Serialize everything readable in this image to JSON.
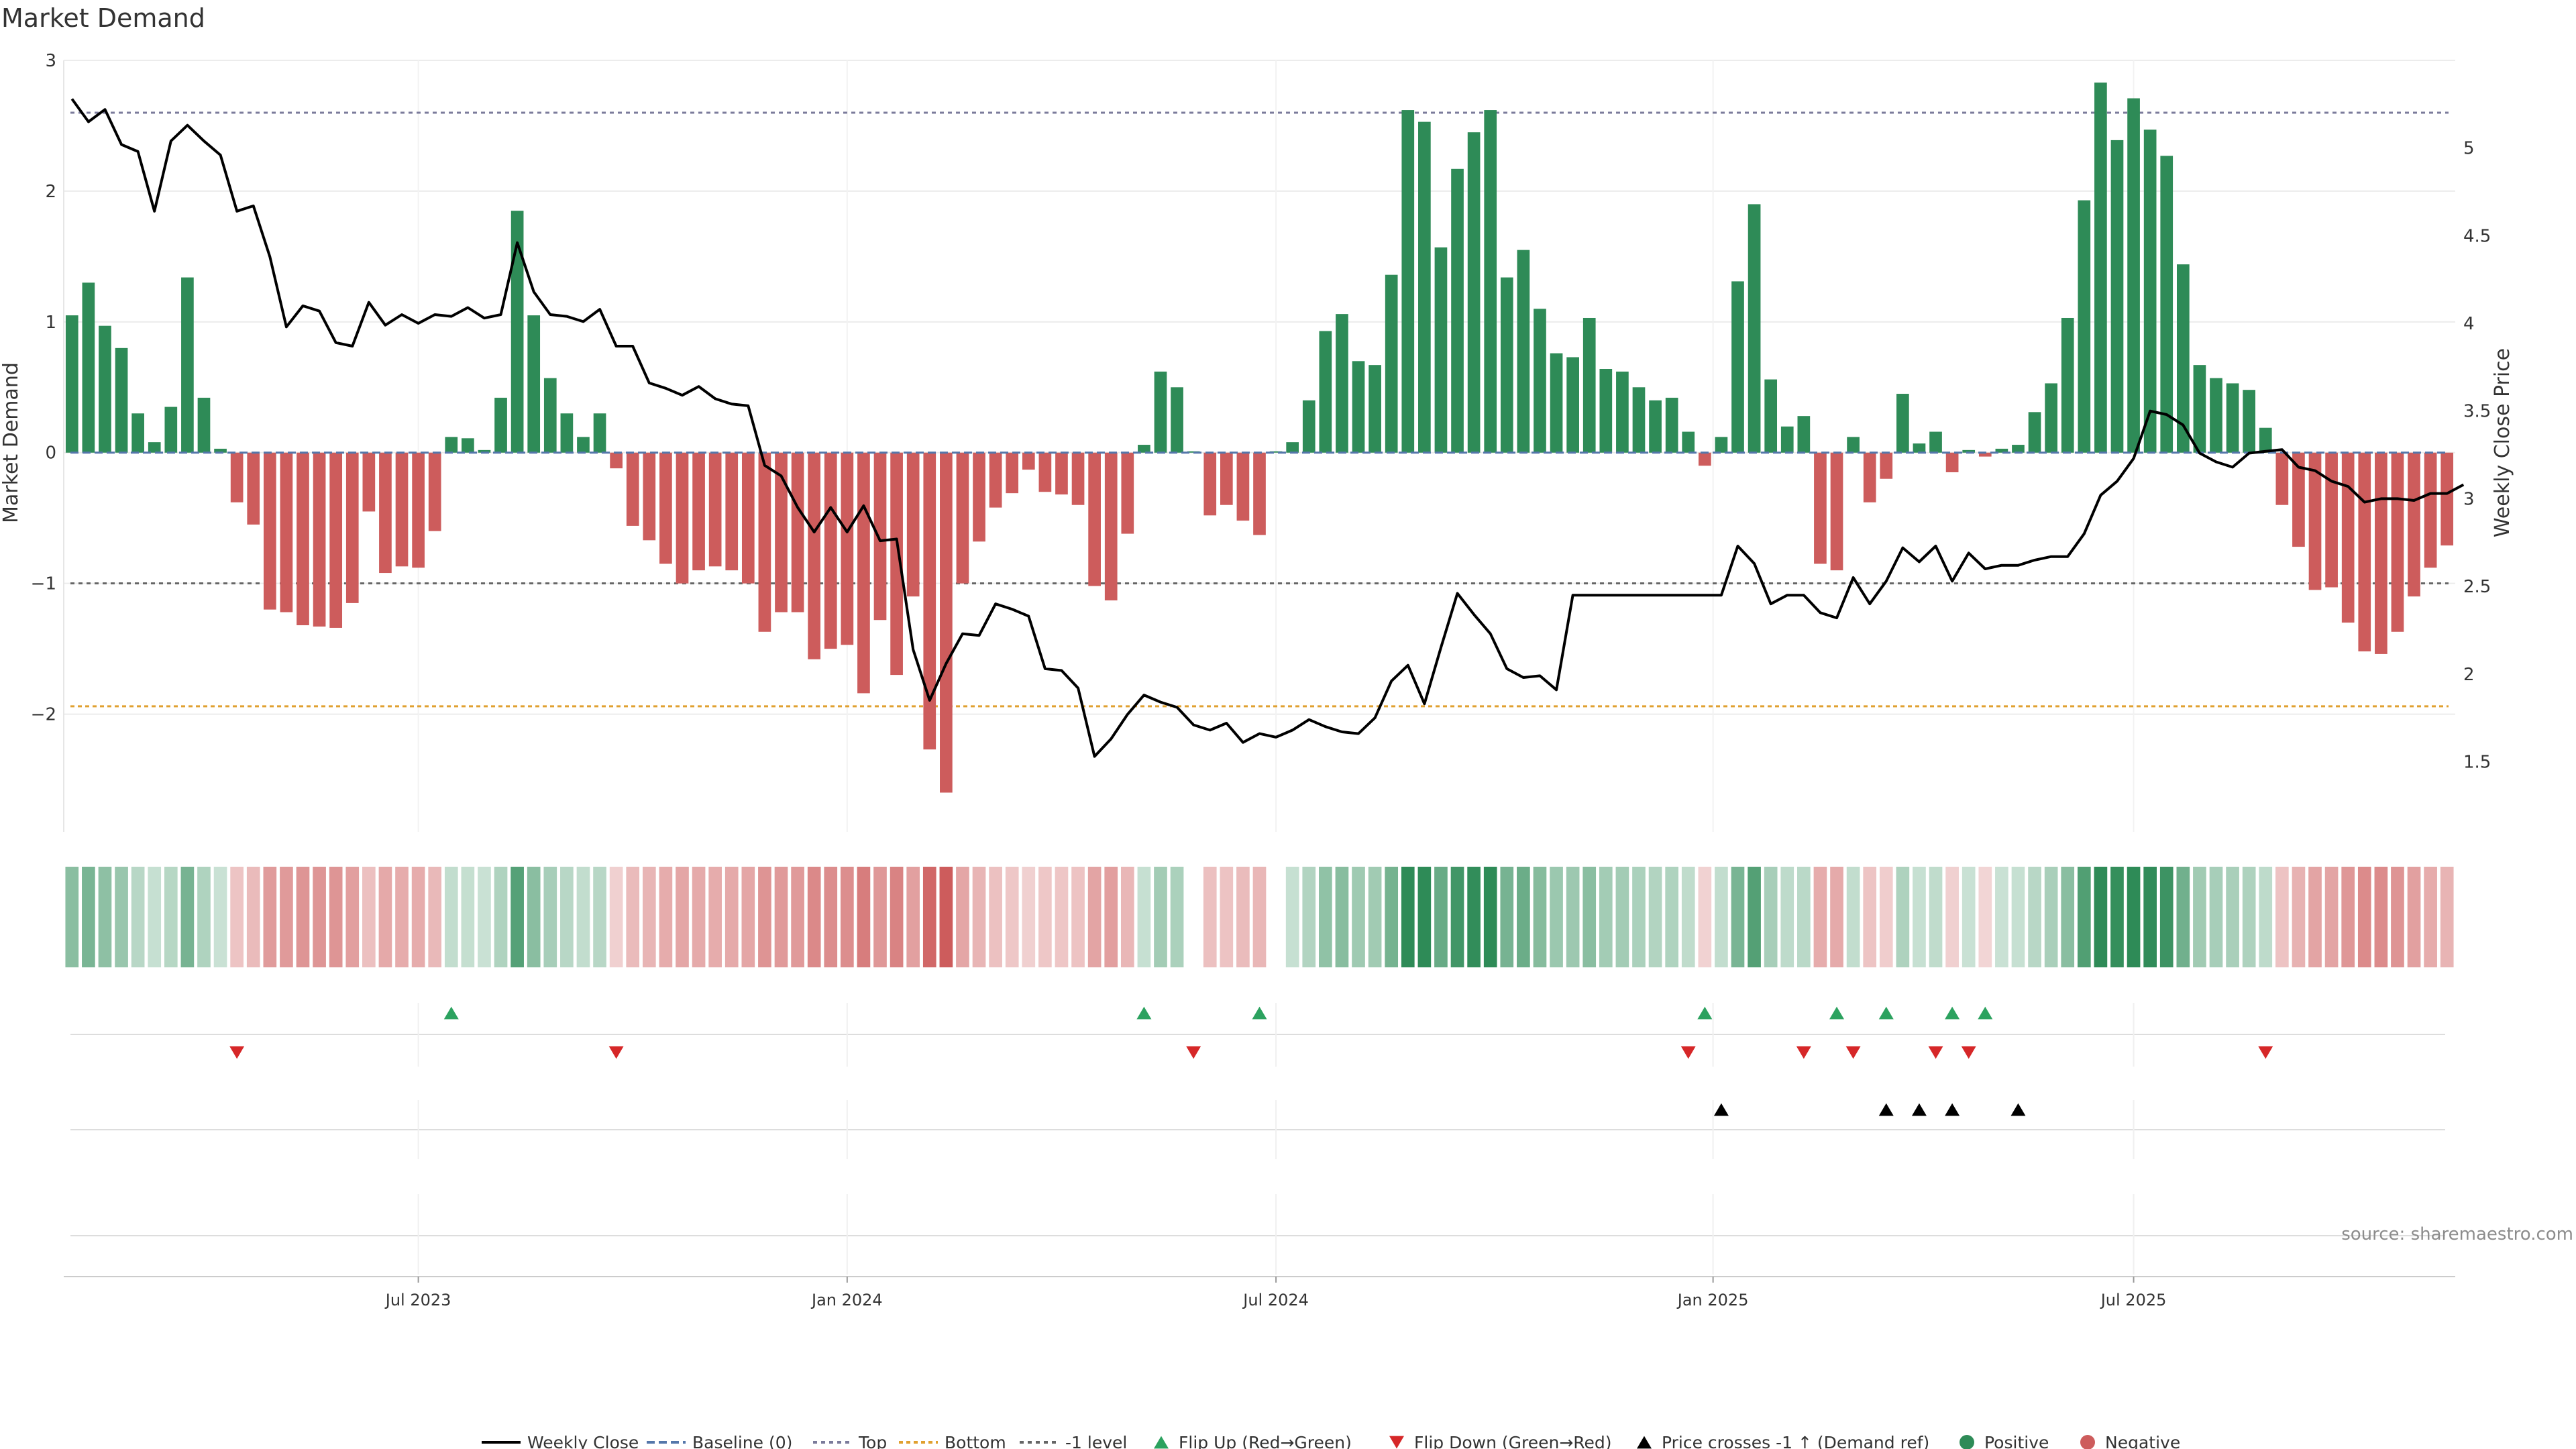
{
  "chart_data": {
    "type": "bar",
    "title": "Market Demand",
    "ylabel": "Market Demand",
    "y2label": "Weekly Close Price",
    "ylim": [
      -2.9,
      3.0
    ],
    "y2lim": [
      1.1,
      5.5
    ],
    "yticks": [
      "3",
      "2",
      "1",
      "0",
      "−1",
      "−2"
    ],
    "ytick_values": [
      3,
      2,
      1,
      0,
      -1,
      -2
    ],
    "y2ticks": [
      "5",
      "4.5",
      "4",
      "3.5",
      "3",
      "2.5",
      "2",
      "1.5"
    ],
    "y2tick_values": [
      5,
      4.5,
      4,
      3.5,
      3,
      2.5,
      2,
      1.5
    ],
    "xticks": [
      "Jul 2023",
      "Jan 2024",
      "Jul 2024",
      "Jan 2025",
      "Jul 2025"
    ],
    "xtick_index": [
      21,
      47,
      73,
      99.5,
      125
    ],
    "reference_lines": {
      "top": 2.6,
      "bottom": -1.94,
      "minus_one": -1
    },
    "colors": {
      "positive": "#2e8b57",
      "negative": "#cd5c5c",
      "price": "#000000",
      "top": "#7b7b9b",
      "bottom": "#e0a030",
      "minus_one": "#666666",
      "flip_up": "#2ca25f",
      "flip_down": "#d62728",
      "cross": "#000000"
    },
    "demand": [
      1.05,
      1.3,
      0.97,
      0.8,
      0.3,
      0.08,
      0.35,
      1.34,
      0.42,
      0.03,
      -0.38,
      -0.55,
      -1.2,
      -1.22,
      -1.32,
      -1.33,
      -1.34,
      -1.15,
      -0.45,
      -0.92,
      -0.87,
      -0.88,
      -0.6,
      0.12,
      0.11,
      0.02,
      0.42,
      1.85,
      1.05,
      0.57,
      0.3,
      0.12,
      0.3,
      -0.12,
      -0.56,
      -0.67,
      -0.85,
      -1.0,
      -0.9,
      -0.87,
      -0.9,
      -1.0,
      -1.37,
      -1.22,
      -1.22,
      -1.58,
      -1.5,
      -1.47,
      -1.84,
      -1.28,
      -1.7,
      -1.1,
      -2.27,
      -2.6,
      -1.0,
      -0.68,
      -0.42,
      -0.31,
      -0.13,
      -0.3,
      -0.32,
      -0.4,
      -1.02,
      -1.13,
      -0.62,
      0.06,
      0.62,
      0.5,
      0.0,
      -0.48,
      -0.4,
      -0.52,
      -0.63,
      0.0,
      0.08,
      0.4,
      0.93,
      1.06,
      0.7,
      0.67,
      1.36,
      2.62,
      2.53,
      1.57,
      2.17,
      2.45,
      2.62,
      1.34,
      1.55,
      1.1,
      0.76,
      0.73,
      1.03,
      0.64,
      0.62,
      0.5,
      0.4,
      0.42,
      0.16,
      -0.1,
      0.12,
      1.31,
      1.9,
      0.56,
      0.2,
      0.28,
      -0.85,
      -0.9,
      0.12,
      -0.38,
      -0.2,
      0.45,
      0.07,
      0.16,
      -0.15,
      0.02,
      -0.03,
      0.03,
      0.06,
      0.31,
      0.53,
      1.03,
      1.93,
      2.83,
      2.39,
      2.71,
      2.47,
      2.27,
      1.44,
      0.67,
      0.57,
      0.53,
      0.48,
      0.19,
      -0.4,
      -0.72,
      -1.05,
      -1.03,
      -1.3,
      -1.52,
      -1.54,
      -1.37,
      -1.1,
      -0.88,
      -0.71
    ],
    "weekly_close": [
      5.28,
      5.15,
      5.22,
      5.02,
      4.98,
      4.64,
      5.04,
      5.13,
      5.04,
      4.96,
      4.64,
      4.67,
      4.38,
      3.98,
      4.1,
      4.07,
      3.89,
      3.87,
      4.12,
      3.99,
      4.05,
      4.0,
      4.05,
      4.04,
      4.09,
      4.03,
      4.05,
      4.46,
      4.18,
      4.05,
      4.04,
      4.01,
      4.08,
      3.87,
      3.87,
      3.66,
      3.63,
      3.59,
      3.64,
      3.57,
      3.54,
      3.53,
      3.19,
      3.13,
      2.95,
      2.81,
      2.95,
      2.81,
      2.96,
      2.76,
      2.77,
      2.14,
      1.85,
      2.06,
      2.23,
      2.22,
      2.4,
      2.37,
      2.33,
      2.03,
      2.02,
      1.92,
      1.53,
      1.63,
      1.77,
      1.88,
      1.84,
      1.81,
      1.71,
      1.68,
      1.72,
      1.61,
      1.66,
      1.64,
      1.68,
      1.74,
      1.7,
      1.67,
      1.66,
      1.75,
      1.96,
      2.05,
      1.83,
      2.15,
      2.46,
      2.34,
      2.23,
      2.03,
      1.98,
      1.99,
      1.91,
      2.45,
      2.45,
      2.45,
      2.45,
      2.45,
      2.45,
      2.45,
      2.45,
      2.45,
      2.45,
      2.73,
      2.63,
      2.4,
      2.45,
      2.45,
      2.35,
      2.32,
      2.55,
      2.4,
      2.53,
      2.72,
      2.64,
      2.73,
      2.53,
      2.69,
      2.6,
      2.62,
      2.62,
      2.65,
      2.67,
      2.67,
      2.8,
      3.02,
      3.1,
      3.23,
      3.5,
      3.48,
      3.42,
      3.26,
      3.21,
      3.18,
      3.26,
      3.27,
      3.28,
      3.18,
      3.16,
      3.1,
      3.07,
      2.98,
      3.0,
      3.0,
      2.99,
      3.03,
      3.03,
      3.08
    ],
    "flip_up_index": [
      23,
      65,
      72,
      99,
      107,
      110,
      114,
      116
    ],
    "flip_down_index": [
      10,
      33,
      68,
      98,
      105,
      108,
      113,
      115,
      133
    ],
    "cross_index": [
      100,
      110,
      112,
      114,
      118
    ],
    "legend": [
      "Weekly Close",
      "Baseline (0)",
      "Top",
      "Bottom",
      "-1 level",
      "Flip Up (Red→Green)",
      "Flip Down (Green→Red)",
      "Price crosses -1 ↑ (Demand ref)",
      "Positive",
      "Negative"
    ],
    "source": "source: sharemaestro.com"
  }
}
